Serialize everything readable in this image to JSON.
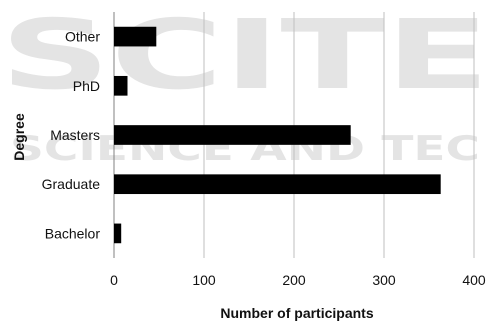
{
  "watermark": {
    "line1": "SCITE",
    "line2": "SCIENCE AND TEC"
  },
  "chart_data": {
    "type": "bar",
    "orientation": "horizontal",
    "categories": [
      "Bachelor",
      "Graduate",
      "Masters",
      "PhD",
      "Other"
    ],
    "values": [
      8,
      363,
      263,
      15,
      47
    ],
    "xlabel": "Number of participants",
    "ylabel": "Degree",
    "xlim": [
      0,
      400
    ],
    "xticks": [
      0,
      100,
      200,
      300,
      400
    ],
    "grid": "vertical",
    "bar_color": "#000000",
    "grid_color": "#bfbfbf"
  }
}
